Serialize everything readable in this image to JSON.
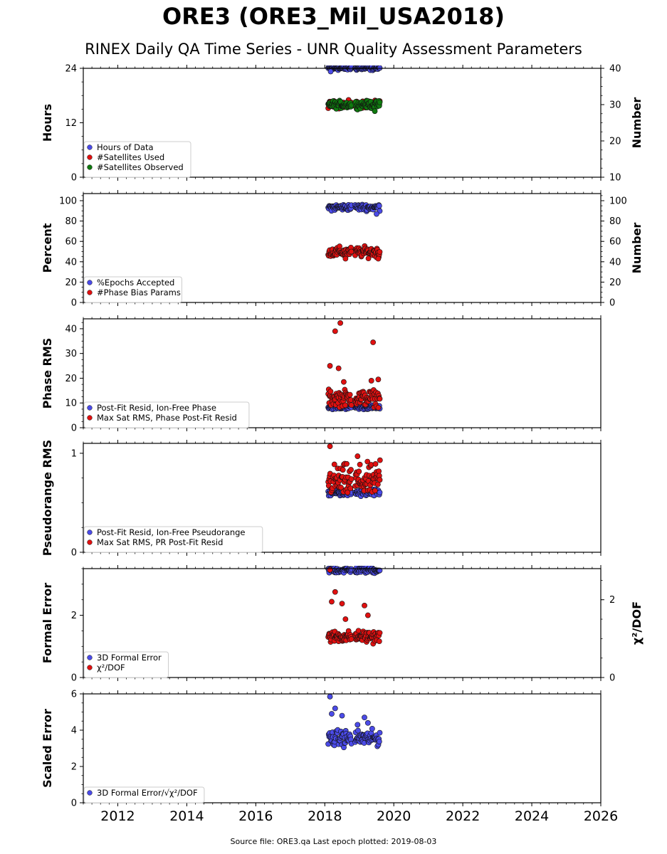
{
  "header": {
    "title": "ORE3 (ORE3_Mil_USA2018)",
    "subtitle": "RINEX Daily QA Time Series - UNR Quality Assessment Parameters"
  },
  "footer": {
    "source": "Source file: ORE3.qa Last epoch plotted: 2019-08-03"
  },
  "chart_data": [
    {
      "type": "scatter",
      "ylabel": "Hours",
      "ylim": [
        0,
        24
      ],
      "yticks": [
        0,
        12,
        24
      ],
      "y2label": "Number",
      "y2lim": [
        10,
        40
      ],
      "y2ticks": [
        10,
        20,
        30,
        40
      ],
      "legend_position": "lower-left",
      "series": [
        {
          "name": "Hours of Data",
          "color": "#4b4be8",
          "axis": "left",
          "center": 24.0,
          "spread": 0.35,
          "outliers": [
            [
              2018.17,
              23.3
            ]
          ]
        },
        {
          "name": "#Satellites Used",
          "color": "#e01010",
          "axis": "right",
          "center": 30.0,
          "spread": 0.8,
          "outliers": []
        },
        {
          "name": "#Satellites Observed",
          "color": "#0f7a0f",
          "axis": "right",
          "center": 30.0,
          "spread": 0.8,
          "outliers": [
            [
              2019.45,
              28.2
            ]
          ]
        }
      ]
    },
    {
      "type": "scatter",
      "ylabel": "Percent",
      "ylim": [
        0,
        107
      ],
      "yticks": [
        0,
        20,
        40,
        60,
        80,
        100
      ],
      "y2label": "Number",
      "y2lim": [
        0,
        107
      ],
      "y2ticks": [
        0,
        20,
        40,
        60,
        80,
        100
      ],
      "legend_position": "lower-left",
      "series": [
        {
          "name": "%Epochs Accepted",
          "color": "#4b4be8",
          "axis": "left",
          "center": 93.5,
          "spread": 2.5,
          "outliers": [
            [
              2019.5,
              87
            ]
          ]
        },
        {
          "name": "#Phase Bias Params",
          "color": "#e01010",
          "axis": "left",
          "center": 49.5,
          "spread": 4.0,
          "outliers": [
            [
              2018.6,
              43
            ],
            [
              2019.55,
              43
            ]
          ]
        }
      ]
    },
    {
      "type": "scatter",
      "ylabel": "Phase RMS",
      "ylim": [
        0,
        44
      ],
      "yticks": [
        0,
        10,
        20,
        30,
        40
      ],
      "legend_position": "lower-left",
      "series": [
        {
          "name": "Post-Fit Resid, Ion-Free Phase",
          "color": "#4b4be8",
          "axis": "left",
          "center": 8.3,
          "spread": 0.7,
          "outliers": []
        },
        {
          "name": "Max Sat RMS, Phase Post-Fit Resid",
          "color": "#e01010",
          "axis": "left",
          "center": 12.0,
          "spread": 2.6,
          "outliers": [
            [
              2018.15,
              25
            ],
            [
              2018.3,
              39
            ],
            [
              2018.45,
              42.3
            ],
            [
              2018.4,
              24
            ],
            [
              2019.4,
              34.5
            ],
            [
              2019.35,
              19
            ],
            [
              2019.55,
              19.5
            ],
            [
              2018.55,
              18.5
            ]
          ]
        }
      ]
    },
    {
      "type": "scatter",
      "ylabel": "Pseudorange RMS",
      "ylim": [
        0,
        1.1
      ],
      "yticks": [
        0,
        1
      ],
      "legend_position": "lower-left",
      "series": [
        {
          "name": "Post-Fit Resid, Ion-Free Pseudorange",
          "color": "#4b4be8",
          "axis": "left",
          "center": 0.6,
          "spread": 0.03,
          "outliers": []
        },
        {
          "name": "Max Sat RMS, PR Post-Fit Resid",
          "color": "#e01010",
          "axis": "left",
          "center": 0.72,
          "spread": 0.13,
          "outliers": [
            [
              2018.15,
              1.07
            ],
            [
              2018.95,
              0.97
            ],
            [
              2019.6,
              0.93
            ]
          ]
        }
      ]
    },
    {
      "type": "scatter",
      "ylabel": "Formal Error",
      "ylim": [
        0,
        3.5
      ],
      "yticks": [
        0,
        2
      ],
      "y2label": "χ²/DOF",
      "y2lim": [
        0,
        2.8
      ],
      "y2ticks": [
        0,
        2
      ],
      "legend_position": "lower-left",
      "series": [
        {
          "name": "3D Formal Error",
          "color": "#4b4be8",
          "axis": "left",
          "center": 3.45,
          "spread": 0.08,
          "outliers": []
        },
        {
          "name": "χ²/DOF",
          "color": "#e01010",
          "axis": "right",
          "center": 1.05,
          "spread": 0.12,
          "outliers": [
            [
              2018.15,
              2.77
            ],
            [
              2018.3,
              2.2
            ],
            [
              2018.2,
              1.95
            ],
            [
              2018.5,
              1.9
            ],
            [
              2019.15,
              1.85
            ],
            [
              2019.25,
              1.6
            ],
            [
              2018.6,
              1.5
            ]
          ]
        }
      ]
    },
    {
      "type": "scatter",
      "ylabel": "Scaled Error",
      "ylim": [
        0,
        6
      ],
      "yticks": [
        0,
        2,
        4,
        6
      ],
      "legend_position": "lower-left",
      "series": [
        {
          "name": "3D Formal Error/√χ²/DOF",
          "color": "#4b4be8",
          "axis": "left",
          "center": 3.55,
          "spread": 0.35,
          "outliers": [
            [
              2018.15,
              5.85
            ],
            [
              2018.3,
              5.2
            ],
            [
              2018.2,
              4.9
            ],
            [
              2018.5,
              4.8
            ],
            [
              2019.15,
              4.7
            ],
            [
              2019.25,
              4.4
            ],
            [
              2018.95,
              4.3
            ]
          ]
        }
      ]
    }
  ],
  "x_axis": {
    "xlim": [
      2011.0,
      2026.0
    ],
    "xticks": [
      "2012",
      "2014",
      "2016",
      "2018",
      "2020",
      "2022",
      "2024",
      "2026"
    ],
    "data_range": [
      2018.1,
      2019.6
    ],
    "data_gap": [
      2018.78,
      2018.88
    ]
  }
}
